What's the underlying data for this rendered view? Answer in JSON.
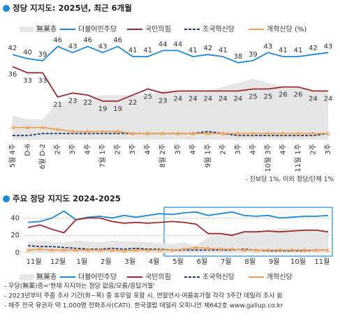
{
  "chart_data": [
    {
      "type": "line",
      "title": "정당 지지도: 2025년, 최근 6개월",
      "categories": [
        "5월 4주",
        "D-6",
        "6월 D-2",
        "2주",
        "3주",
        "4주",
        "7월 1주",
        "2주",
        "3주",
        "4주",
        "8월 2주",
        "3주",
        "4주",
        "9월 1주",
        "2주",
        "3주",
        "4주",
        "10월 3주",
        "4주",
        "11월 1주",
        "2주",
        "3주"
      ],
      "ylim": [
        0,
        50
      ],
      "series": [
        {
          "name": "無黨층",
          "color": "#e6e6e6",
          "style": "area",
          "labels": false,
          "values": [
            12,
            10,
            10,
            18,
            20,
            20,
            22,
            22,
            22,
            22,
            24,
            24,
            24,
            24,
            26,
            28,
            30,
            28,
            26,
            26,
            24,
            24
          ]
        },
        {
          "name": "더불어민주당",
          "color": "#1e88d8",
          "style": "solid",
          "labels": true,
          "values": [
            42,
            40,
            39,
            46,
            43,
            46,
            43,
            46,
            41,
            41,
            44,
            44,
            41,
            42,
            41,
            38,
            39,
            43,
            41,
            41,
            42,
            43
          ]
        },
        {
          "name": "국민의힘",
          "color": "#9e2b2b",
          "style": "solid",
          "labels": true,
          "values": [
            36,
            33,
            33,
            21,
            23,
            22,
            19,
            19,
            22,
            25,
            23,
            24,
            24,
            24,
            24,
            24,
            25,
            25,
            26,
            26,
            24,
            24
          ]
        },
        {
          "name": "조국혁신당",
          "color": "#1f3a6e",
          "style": "dashed",
          "labels": false,
          "values": [
            2,
            2,
            3,
            3,
            3,
            3,
            3,
            3,
            3,
            3,
            3,
            3,
            3,
            4,
            3,
            2,
            2,
            2,
            2,
            2,
            2,
            3
          ]
        },
        {
          "name": "개혁신당 (%)",
          "color": "#f0a050",
          "style": "marker",
          "labels": false,
          "values": [
            6,
            6,
            6,
            5,
            4,
            4,
            4,
            4,
            3,
            3,
            3,
            3,
            3,
            3,
            3,
            3,
            3,
            3,
            3,
            3,
            3,
            3
          ]
        }
      ],
      "note": "- 진보당 1%, 이외 정당/단체 1%"
    },
    {
      "type": "line",
      "title": "주요 정당 지지도 2024-2025",
      "categories": [
        "11월",
        null,
        "12월",
        null,
        "1월",
        null,
        "2월",
        null,
        "3월",
        null,
        "4월",
        null,
        "5월",
        null,
        "6월",
        null,
        "7월",
        null,
        "8월",
        null,
        "9월",
        null,
        "10월",
        null,
        "11월",
        null
      ],
      "ylim": [
        0,
        50
      ],
      "yticks": [
        0,
        20,
        40
      ],
      "grid": true,
      "series": [
        {
          "name": "無黨층",
          "color": "#e6e6e6",
          "style": "area",
          "values": [
            12,
            14,
            12,
            12,
            14,
            13,
            12,
            14,
            13,
            13,
            12,
            11,
            10,
            12,
            8,
            18,
            20,
            22,
            22,
            24,
            26,
            28,
            28,
            26,
            24,
            24
          ]
        },
        {
          "name": "더불어민주당",
          "color": "#1e88d8",
          "style": "solid",
          "values": [
            35,
            36,
            40,
            48,
            38,
            41,
            42,
            40,
            43,
            41,
            43,
            45,
            44,
            46,
            47,
            43,
            45,
            47,
            43,
            42,
            43,
            40,
            41,
            42,
            42,
            43
          ]
        },
        {
          "name": "국민의힘",
          "color": "#9e2b2b",
          "style": "solid",
          "values": [
            29,
            32,
            27,
            23,
            38,
            40,
            40,
            36,
            34,
            35,
            34,
            35,
            36,
            35,
            33,
            22,
            22,
            20,
            24,
            24,
            25,
            24,
            25,
            26,
            26,
            24
          ]
        },
        {
          "name": "조국혁신당",
          "color": "#1f3a6e",
          "style": "dashed",
          "values": [
            8,
            7,
            7,
            6,
            5,
            4,
            4,
            5,
            4,
            5,
            4,
            4,
            3,
            3,
            3,
            3,
            3,
            3,
            4,
            3,
            2,
            2,
            2,
            2,
            3,
            3
          ]
        },
        {
          "name": "개혁신당",
          "color": "#f0a050",
          "style": "marker",
          "values": [
            3,
            4,
            3,
            3,
            3,
            3,
            3,
            3,
            2,
            3,
            3,
            3,
            3,
            4,
            6,
            5,
            4,
            4,
            3,
            3,
            3,
            3,
            3,
            3,
            3,
            3
          ]
        }
      ]
    }
  ],
  "footnotes": [
    "- 무당(無黨)층='현재 지지하는 정당 없음/모름/응답거절'",
    "- 2023년부터 주중 조사 기간(화~목) 중 휴무일 포함 시, 연말연시·여름휴가철 각각 3주간 데일리 조사 쉼",
    "- 매주 전국 유권자 약 1,000명 전화조사(CATI). 한국갤럽 데일리 오피니언 제642호 www.gallup.co.kr"
  ]
}
